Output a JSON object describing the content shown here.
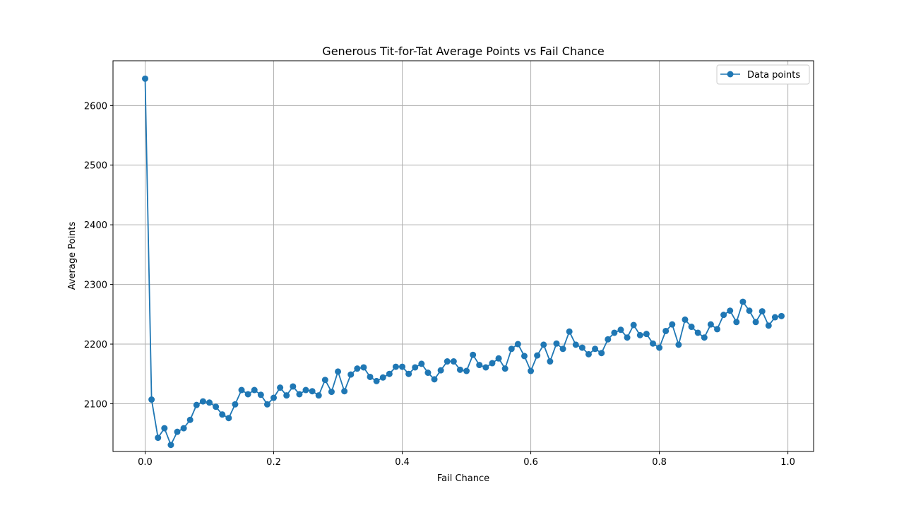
{
  "chart_data": {
    "type": "line",
    "title": "Generous Tit-for-Tat Average Points vs Fail Chance",
    "xlabel": "Fail Chance",
    "ylabel": "Average Points",
    "xlim": [
      -0.05,
      1.04
    ],
    "ylim": [
      2020,
      2675
    ],
    "xticks": [
      "0.0",
      "0.2",
      "0.4",
      "0.6",
      "0.8",
      "1.0"
    ],
    "yticks": [
      "2100",
      "2200",
      "2300",
      "2400",
      "2500",
      "2600"
    ],
    "grid": true,
    "legend": "top-right",
    "series": [
      {
        "name": "Data points",
        "color": "#1f77b4",
        "marker": "circle",
        "x": [
          0.0,
          0.01,
          0.02,
          0.03,
          0.04,
          0.05,
          0.06,
          0.07,
          0.08,
          0.09,
          0.1,
          0.11,
          0.12,
          0.13,
          0.14,
          0.15,
          0.16,
          0.17,
          0.18,
          0.19,
          0.2,
          0.21,
          0.22,
          0.23,
          0.24,
          0.25,
          0.26,
          0.27,
          0.28,
          0.29,
          0.3,
          0.31,
          0.32,
          0.33,
          0.34,
          0.35,
          0.36,
          0.37,
          0.38,
          0.39,
          0.4,
          0.41,
          0.42,
          0.43,
          0.44,
          0.45,
          0.46,
          0.47,
          0.48,
          0.49,
          0.5,
          0.51,
          0.52,
          0.53,
          0.54,
          0.55,
          0.56,
          0.57,
          0.58,
          0.59,
          0.6,
          0.61,
          0.62,
          0.63,
          0.64,
          0.65,
          0.66,
          0.67,
          0.68,
          0.69,
          0.7,
          0.71,
          0.72,
          0.73,
          0.74,
          0.75,
          0.76,
          0.77,
          0.78,
          0.79,
          0.8,
          0.81,
          0.82,
          0.83,
          0.84,
          0.85,
          0.86,
          0.87,
          0.88,
          0.89,
          0.9,
          0.91,
          0.92,
          0.93,
          0.94,
          0.95,
          0.96,
          0.97,
          0.98,
          0.99
        ],
        "y": [
          2645,
          2107,
          2043,
          2059,
          2031,
          2053,
          2059,
          2073,
          2098,
          2104,
          2102,
          2095,
          2082,
          2076,
          2099,
          2123,
          2116,
          2123,
          2115,
          2099,
          2110,
          2127,
          2114,
          2129,
          2116,
          2123,
          2121,
          2114,
          2140,
          2120,
          2154,
          2121,
          2149,
          2159,
          2161,
          2145,
          2138,
          2144,
          2150,
          2162,
          2162,
          2150,
          2161,
          2167,
          2152,
          2141,
          2156,
          2171,
          2171,
          2157,
          2155,
          2182,
          2165,
          2161,
          2168,
          2176,
          2159,
          2192,
          2200,
          2180,
          2155,
          2181,
          2199,
          2171,
          2201,
          2192,
          2221,
          2199,
          2194,
          2183,
          2192,
          2185,
          2208,
          2219,
          2224,
          2211,
          2232,
          2215,
          2217,
          2201,
          2194,
          2222,
          2233,
          2199,
          2241,
          2229,
          2219,
          2211,
          2233,
          2225,
          2249,
          2256,
          2237,
          2271,
          2256,
          2237,
          2255,
          2231,
          2245,
          2247
        ]
      }
    ]
  }
}
